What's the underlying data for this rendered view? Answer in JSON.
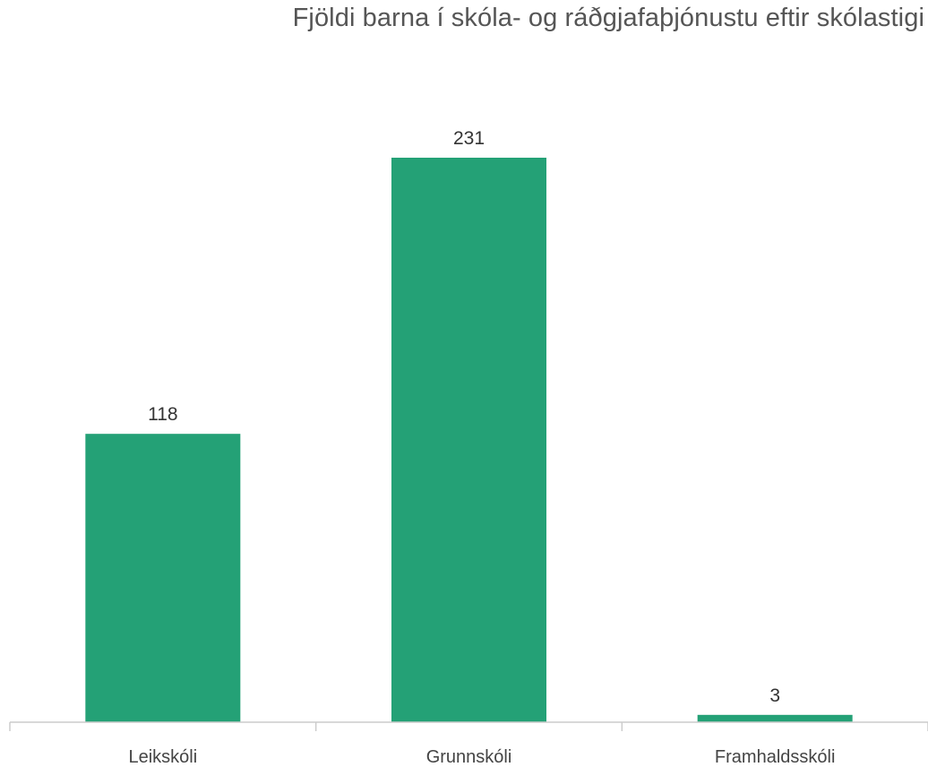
{
  "chart_data": {
    "type": "bar",
    "title": "Fjöldi barna í skóla- og ráðgjafaþjónustu eftir skólastigi",
    "categories": [
      "Leikskóli",
      "Grunnskóli",
      "Framhaldsskóli"
    ],
    "values": [
      118,
      231,
      3
    ],
    "data_labels": [
      "118",
      "231",
      "3"
    ],
    "xlabel": "",
    "ylabel": "",
    "ylim": [
      0,
      231
    ],
    "grid": false,
    "legend": "none",
    "bar_color": "#24a176",
    "axis_color": "#cccccc"
  }
}
